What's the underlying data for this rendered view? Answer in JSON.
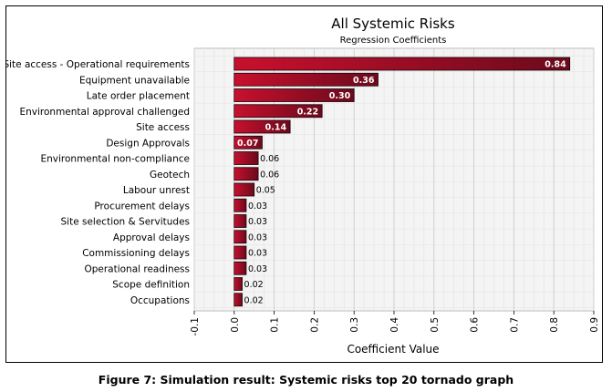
{
  "caption": "Figure 7: Simulation result: Systemic risks top 20 tornado graph",
  "chart_data": {
    "type": "bar",
    "orientation": "horizontal",
    "title": "All Systemic Risks",
    "subtitle": "Regression Coefficients",
    "xlabel": "Coefficient Value",
    "ylabel": "",
    "xlim": [
      -0.1,
      0.9
    ],
    "x_ticks": [
      "-0.1",
      "0.0",
      "0.1",
      "0.2",
      "0.3",
      "0.4",
      "0.5",
      "0.6",
      "0.7",
      "0.8",
      "0.9"
    ],
    "grid": true,
    "bar_color": "#c8102e",
    "bar_color_dark": "#6b0a1c",
    "categories": [
      "Site access - Operational requirements",
      "Equipment unavailable",
      "Late order placement",
      "Environmental approval challenged",
      "Site access",
      "Design Approvals",
      "Environmental non-compliance",
      "Geotech",
      "Labour unrest",
      "Procurement delays",
      "Site selection & Servitudes",
      "Approval delays",
      "Commissioning delays",
      "Operational readiness",
      "Scope definition",
      "Occupations"
    ],
    "values": [
      0.84,
      0.36,
      0.3,
      0.22,
      0.14,
      0.07,
      0.06,
      0.06,
      0.05,
      0.03,
      0.03,
      0.03,
      0.03,
      0.03,
      0.02,
      0.02
    ],
    "labels": [
      "0.84",
      "0.36",
      "0.30",
      "0.22",
      "0.14",
      "0.07",
      "0.06",
      "0.06",
      "0.05",
      "0.03",
      "0.03",
      "0.03",
      "0.03",
      "0.03",
      "0.02",
      "0.02"
    ]
  }
}
